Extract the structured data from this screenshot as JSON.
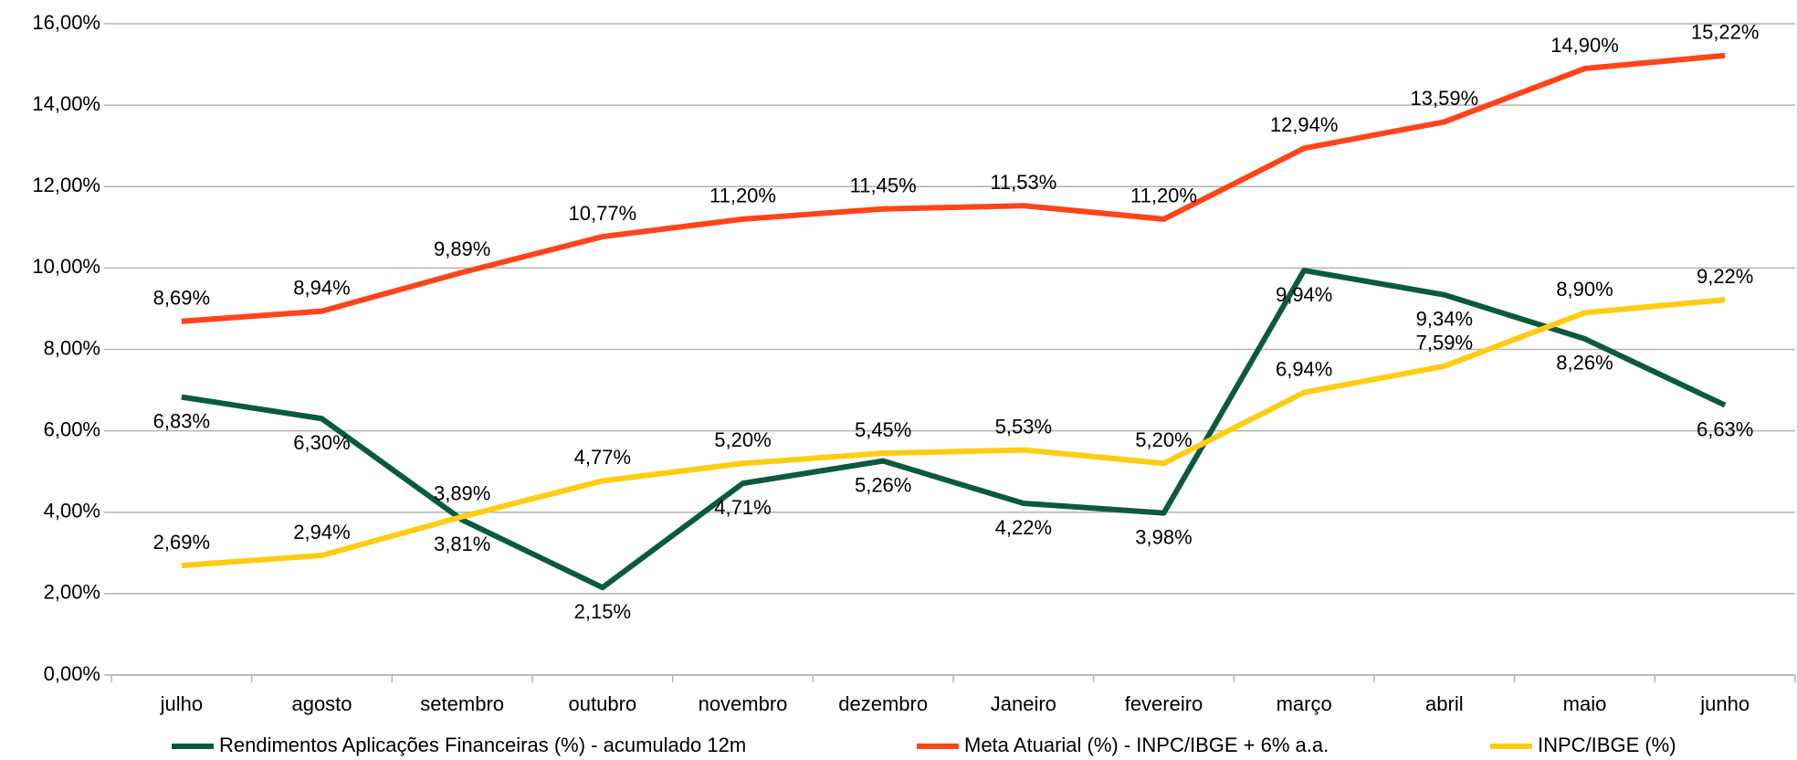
{
  "chart_data": {
    "type": "line",
    "categories": [
      "julho",
      "agosto",
      "setembro",
      "outubro",
      "novembro",
      "dezembro",
      "Janeiro",
      "fevereiro",
      "março",
      "abril",
      "maio",
      "junho"
    ],
    "series": [
      {
        "name": "Rendimentos Aplicações Financeiras (%) - acumulado 12m",
        "color": "#0b5a3f",
        "values": [
          6.83,
          6.3,
          3.81,
          2.15,
          4.71,
          5.26,
          4.22,
          3.98,
          9.94,
          9.34,
          8.26,
          6.63
        ],
        "value_labels": [
          "6,83%",
          "6,30%",
          "3,81%",
          "2,15%",
          "4,71%",
          "5,26%",
          "4,22%",
          "3,98%",
          "9,94%",
          "9,34%",
          "8,26%",
          "6,63%"
        ]
      },
      {
        "name": "Meta Atuarial (%) - INPC/IBGE + 6% a.a.",
        "color": "#ff4419",
        "values": [
          8.69,
          8.94,
          9.89,
          10.77,
          11.2,
          11.45,
          11.53,
          11.2,
          12.94,
          13.59,
          14.9,
          15.22
        ],
        "value_labels": [
          "8,69%",
          "8,94%",
          "9,89%",
          "10,77%",
          "11,20%",
          "11,45%",
          "11,53%",
          "11,20%",
          "12,94%",
          "13,59%",
          "14,90%",
          "15,22%"
        ]
      },
      {
        "name": "INPC/IBGE (%)",
        "color": "#ffcc11",
        "values": [
          2.69,
          2.94,
          3.89,
          4.77,
          5.2,
          5.45,
          5.53,
          5.2,
          6.94,
          7.59,
          8.9,
          9.22
        ],
        "value_labels": [
          "2,69%",
          "2,94%",
          "3,89%",
          "4,77%",
          "5,20%",
          "5,45%",
          "5,53%",
          "5,20%",
          "6,94%",
          "7,59%",
          "8,90%",
          "9,22%"
        ]
      }
    ],
    "ylim": [
      0,
      16
    ],
    "yticks": [
      {
        "value": 0,
        "label": "0,00%"
      },
      {
        "value": 2,
        "label": "2,00%"
      },
      {
        "value": 4,
        "label": "4,00%"
      },
      {
        "value": 6,
        "label": "6,00%"
      },
      {
        "value": 8,
        "label": "8,00%"
      },
      {
        "value": 10,
        "label": "10,00%"
      },
      {
        "value": 12,
        "label": "12,00%"
      },
      {
        "value": 14,
        "label": "14,00%"
      },
      {
        "value": 16,
        "label": "16,00%"
      }
    ],
    "grid": true,
    "legend": "bottom"
  }
}
